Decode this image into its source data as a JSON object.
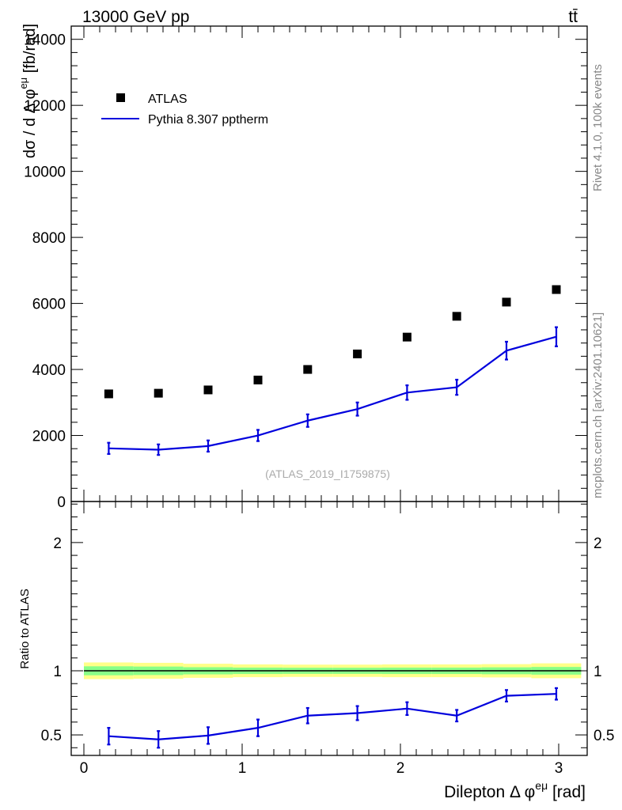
{
  "header": {
    "energy_label": "13000 GeV pp",
    "process_label": "tt̄",
    "side_label_top": "Rivet 4.1.0,  100k events",
    "side_label_bottom": "mcplots.cern.ch [arXiv:2401.10621]",
    "analysis_id": "(ATLAS_2019_I1759875)"
  },
  "legend": {
    "data_label": "ATLAS",
    "mc_label": "Pythia 8.307 pptherm"
  },
  "colors": {
    "data": "#000000",
    "mc": "#0000dd",
    "band_outer": "#ffff88",
    "band_inner": "#88ff88"
  },
  "chart_data": [
    {
      "type": "scatter",
      "title": "13000 GeV pp",
      "xlabel": "Dilepton Δ φ^eμ [rad]",
      "ylabel": "dσ / d Δ φ^eμ [fb/rad]",
      "xlim": [
        -0.08,
        3.18
      ],
      "ylim": [
        0,
        14400
      ],
      "x_ticks": [
        0,
        1,
        2,
        3
      ],
      "y_ticks": [
        0,
        2000,
        4000,
        6000,
        8000,
        10000,
        12000,
        14000
      ],
      "x_tick_labels": [
        "0",
        "1",
        "2",
        "3"
      ],
      "y_tick_labels": [
        "0",
        "2000",
        "4000",
        "6000",
        "8000",
        "10000",
        "12000",
        "14000"
      ],
      "series": [
        {
          "name": "ATLAS",
          "kind": "markers",
          "x": [
            0.157,
            0.471,
            0.785,
            1.1,
            1.414,
            1.728,
            2.042,
            2.356,
            2.67,
            2.985
          ],
          "y": [
            3260,
            3280,
            3380,
            3680,
            4000,
            4470,
            4980,
            5610,
            6040,
            6420
          ]
        },
        {
          "name": "Pythia 8.307 pptherm",
          "kind": "line",
          "x": [
            0.157,
            0.471,
            0.785,
            1.1,
            1.414,
            1.728,
            2.042,
            2.356,
            2.67,
            2.985
          ],
          "y": [
            1610,
            1570,
            1680,
            2000,
            2450,
            2800,
            3300,
            3460,
            4570,
            4990
          ],
          "err": [
            170,
            160,
            170,
            170,
            190,
            200,
            220,
            230,
            270,
            290
          ]
        }
      ]
    },
    {
      "type": "line",
      "title": "Ratio to ATLAS",
      "xlabel": "Dilepton Δ φ^eμ [rad]",
      "ylabel": "Ratio to ATLAS",
      "xlim": [
        -0.08,
        3.18
      ],
      "ylim": [
        0.34,
        2.32
      ],
      "x_ticks": [
        0,
        1,
        2,
        3
      ],
      "y_ticks": [
        0.5,
        1,
        2
      ],
      "x_tick_labels": [
        "0",
        "1",
        "2",
        "3"
      ],
      "y_tick_labels": [
        "0.5",
        "1",
        "2"
      ],
      "reference_line": 1,
      "band": {
        "x_edges": [
          0,
          0.314,
          0.628,
          0.942,
          1.257,
          1.571,
          1.885,
          2.199,
          2.513,
          2.827,
          3.142
        ],
        "outer_half_width": [
          0.065,
          0.062,
          0.055,
          0.05,
          0.048,
          0.048,
          0.05,
          0.05,
          0.052,
          0.058
        ],
        "inner_half_width": [
          0.035,
          0.033,
          0.028,
          0.025,
          0.024,
          0.024,
          0.025,
          0.025,
          0.027,
          0.03
        ]
      },
      "series": [
        {
          "name": "Pythia 8.307 pptherm",
          "x": [
            0.157,
            0.471,
            0.785,
            1.1,
            1.414,
            1.728,
            2.042,
            2.356,
            2.67,
            2.985
          ],
          "y": [
            0.49,
            0.465,
            0.495,
            0.555,
            0.65,
            0.67,
            0.705,
            0.65,
            0.805,
            0.82
          ],
          "err": [
            0.065,
            0.065,
            0.065,
            0.065,
            0.06,
            0.055,
            0.05,
            0.045,
            0.045,
            0.045
          ]
        }
      ]
    }
  ]
}
